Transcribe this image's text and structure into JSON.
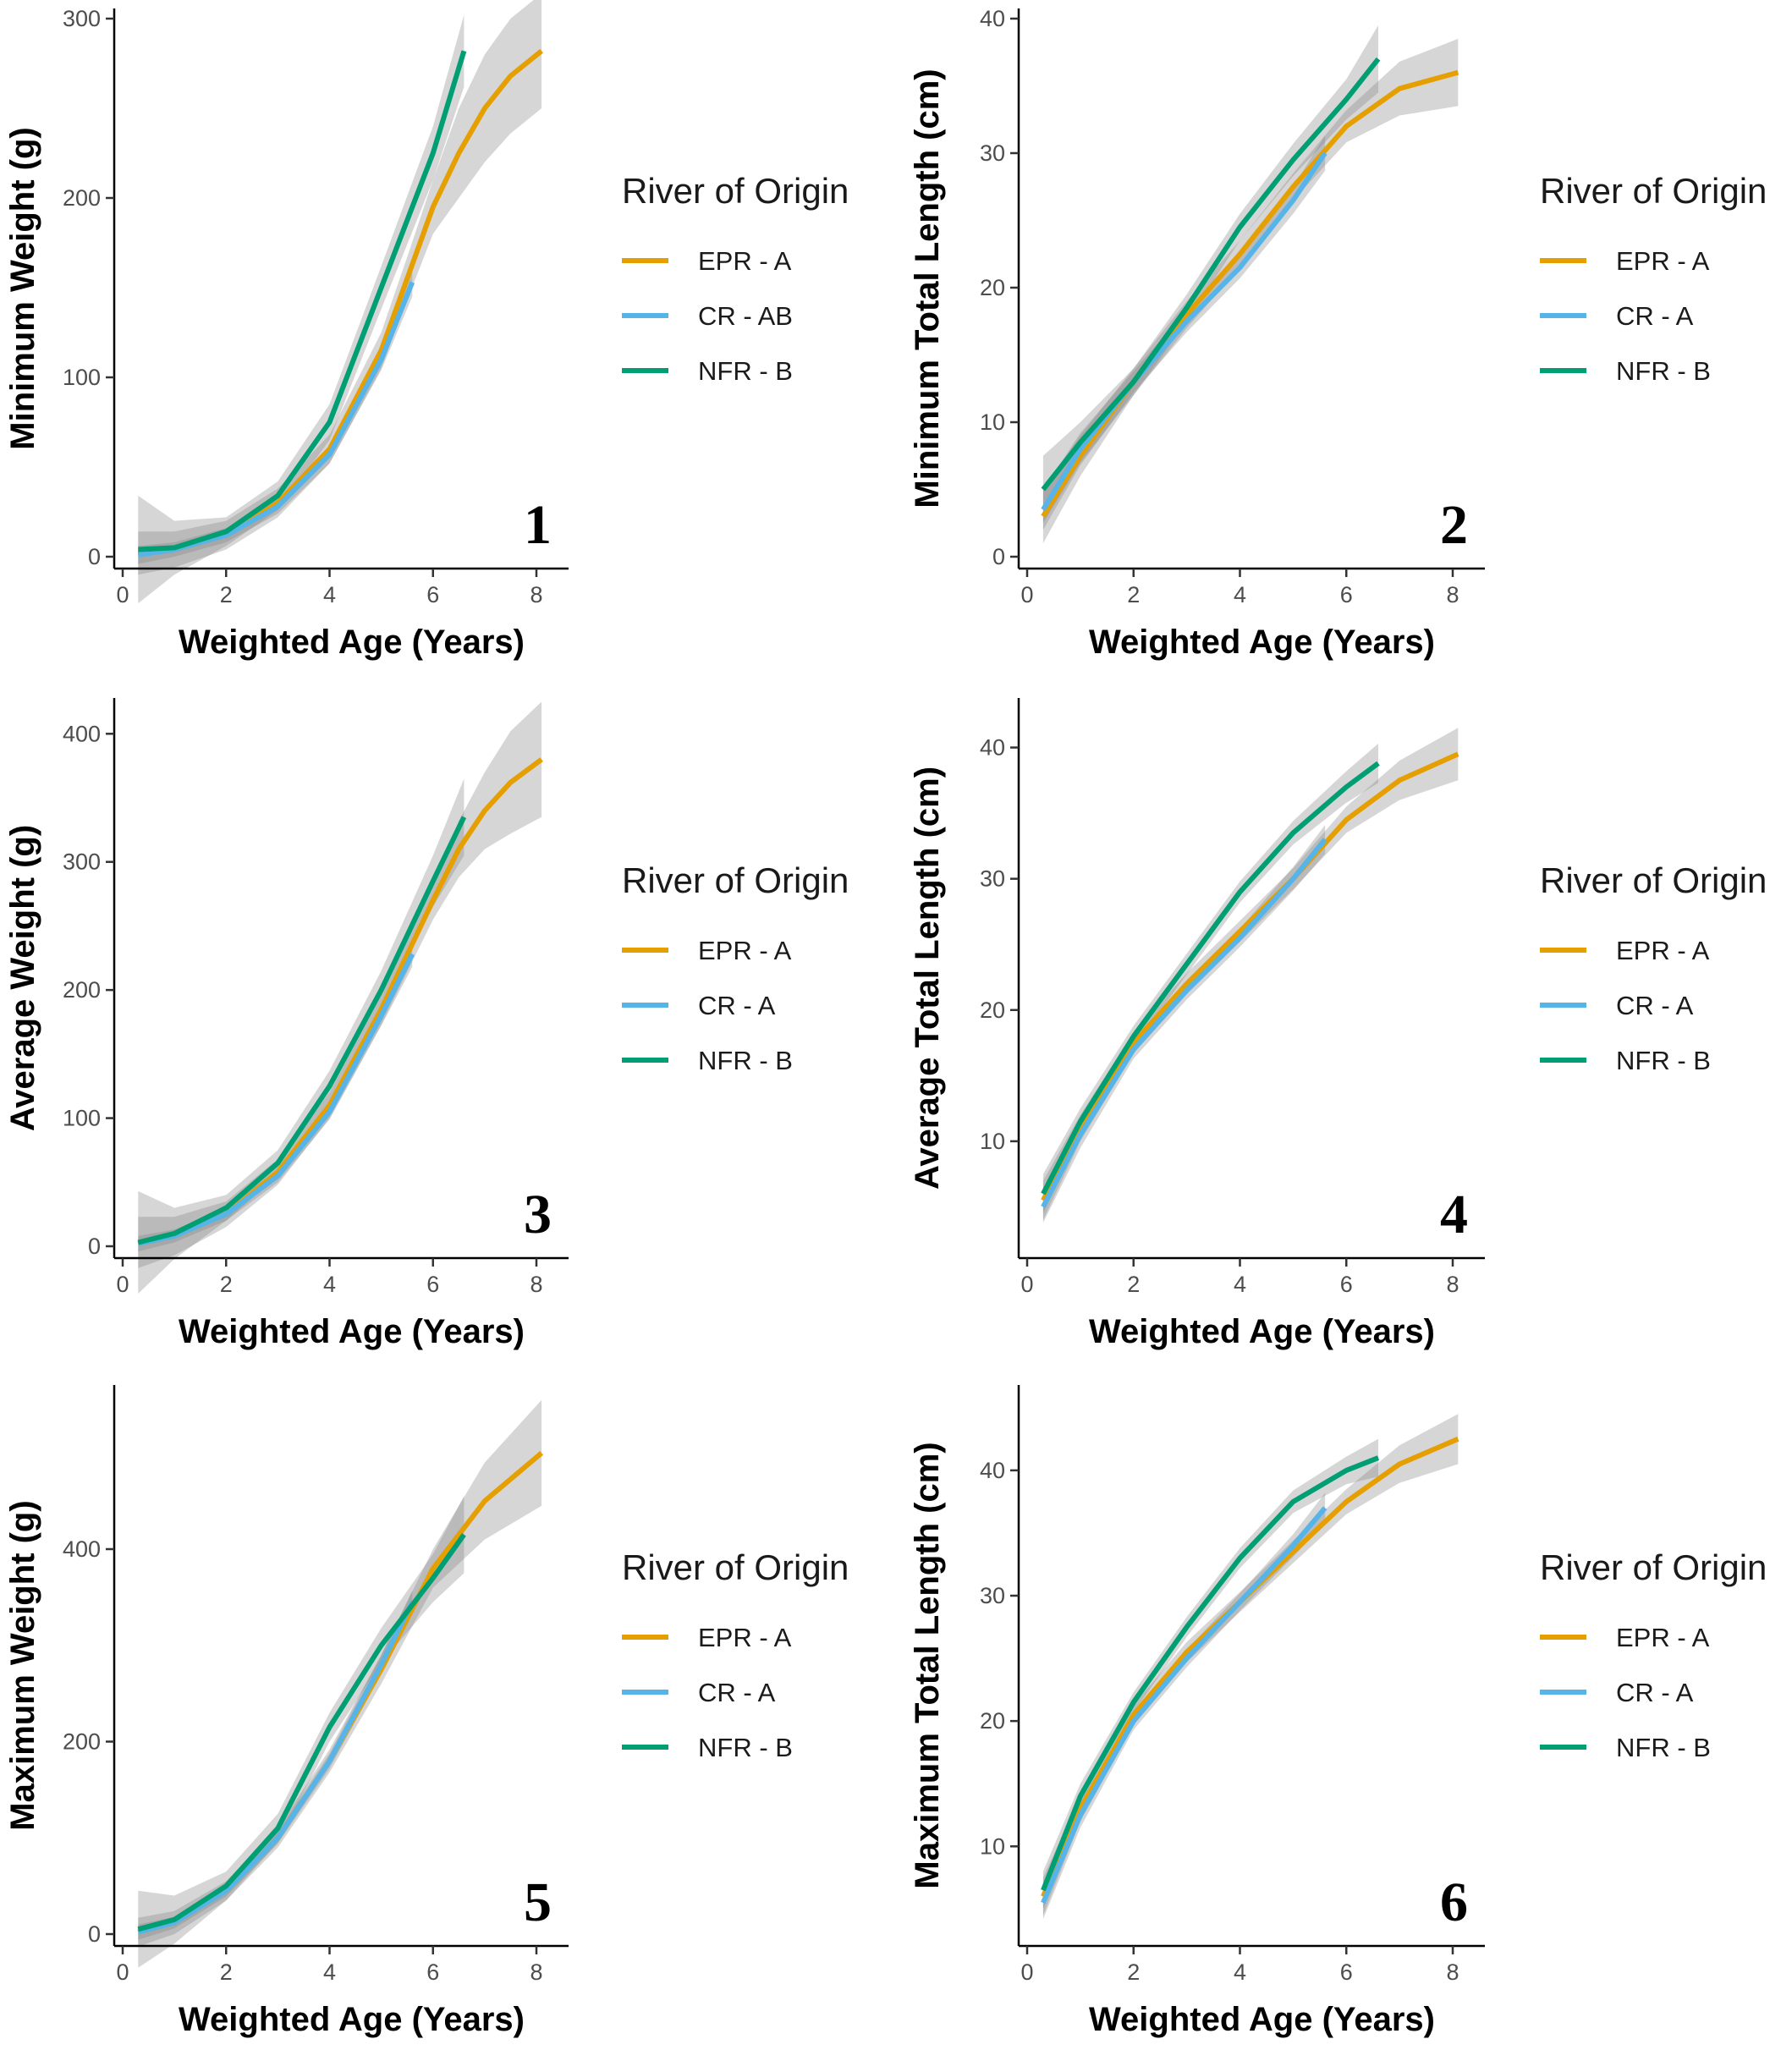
{
  "colors": {
    "EPR": "#E69F00",
    "CR": "#56B4E9",
    "NFR": "#009E73",
    "band": "#808080"
  },
  "chart_data": [
    {
      "type": "line",
      "panel_label": "1",
      "xlabel": "Weighted Age (Years)",
      "ylabel": "Minimum Weight (g)",
      "xlim": [
        0,
        8
      ],
      "ylim": [
        0,
        300
      ],
      "xticks": [
        0,
        2,
        4,
        6,
        8
      ],
      "yticks": [
        0,
        100,
        200,
        300
      ],
      "legend_title": "River of Origin",
      "series": [
        {
          "name": "EPR - A",
          "color_key": "EPR",
          "x": [
            0.3,
            1,
            2,
            3,
            4,
            5,
            5.5,
            6,
            6.5,
            7,
            7.5,
            8.1
          ],
          "y": [
            2,
            4,
            12,
            30,
            60,
            115,
            155,
            195,
            225,
            250,
            268,
            282
          ],
          "band": [
            12,
            10,
            8,
            8,
            8,
            10,
            12,
            15,
            25,
            30,
            32,
            32
          ]
        },
        {
          "name": "CR - AB",
          "color_key": "CR",
          "x": [
            0.3,
            1,
            2,
            3,
            4,
            5,
            5.6
          ],
          "y": [
            1,
            4,
            12,
            28,
            57,
            110,
            153
          ],
          "band": [
            5,
            4,
            4,
            4,
            5,
            6,
            8
          ]
        },
        {
          "name": "NFR - B",
          "color_key": "NFR",
          "x": [
            0.3,
            1,
            2,
            3,
            4,
            5,
            6,
            6.6
          ],
          "y": [
            4,
            5,
            14,
            34,
            75,
            150,
            225,
            282
          ],
          "band": [
            30,
            15,
            8,
            8,
            10,
            12,
            15,
            20
          ]
        }
      ]
    },
    {
      "type": "line",
      "panel_label": "2",
      "xlabel": "Weighted Age (Years)",
      "ylabel": "Minimum Total Length (cm)",
      "xlim": [
        0,
        8
      ],
      "ylim": [
        0,
        40
      ],
      "xticks": [
        0,
        2,
        4,
        6,
        8
      ],
      "yticks": [
        0,
        10,
        20,
        30,
        40
      ],
      "legend_title": "River of Origin",
      "series": [
        {
          "name": "EPR - A",
          "color_key": "EPR",
          "x": [
            0.3,
            1,
            2,
            3,
            4,
            5,
            6,
            7,
            8.1
          ],
          "y": [
            3,
            7.5,
            13,
            18,
            22.5,
            27.5,
            32,
            34.8,
            36
          ],
          "band": [
            2,
            1.5,
            1,
            1,
            1,
            1,
            1.2,
            2,
            2.5
          ]
        },
        {
          "name": "CR - A",
          "color_key": "CR",
          "x": [
            0.3,
            1,
            2,
            3,
            4,
            5,
            5.6
          ],
          "y": [
            3.5,
            8,
            13,
            17.5,
            21.5,
            26.5,
            30
          ],
          "band": [
            1.5,
            1.2,
            0.8,
            0.8,
            0.8,
            1,
            1.3
          ]
        },
        {
          "name": "NFR - B",
          "color_key": "NFR",
          "x": [
            0.3,
            1,
            2,
            3,
            4,
            5,
            6,
            6.6
          ],
          "y": [
            5,
            8.5,
            13,
            18.5,
            24.5,
            29.5,
            34,
            37
          ],
          "band": [
            2.5,
            1.5,
            1,
            1,
            1,
            1.2,
            1.5,
            2.5
          ]
        }
      ]
    },
    {
      "type": "line",
      "panel_label": "3",
      "xlabel": "Weighted Age (Years)",
      "ylabel": "Average Weight (g)",
      "xlim": [
        0,
        8
      ],
      "ylim": [
        0,
        420
      ],
      "xticks": [
        0,
        2,
        4,
        6,
        8
      ],
      "yticks": [
        0,
        100,
        200,
        300,
        400
      ],
      "legend_title": "River of Origin",
      "series": [
        {
          "name": "EPR - A",
          "color_key": "EPR",
          "x": [
            0.3,
            1,
            2,
            3,
            4,
            5,
            6,
            6.5,
            7,
            7.5,
            8.1
          ],
          "y": [
            3,
            8,
            25,
            58,
            110,
            185,
            270,
            310,
            340,
            362,
            380
          ],
          "band": [
            20,
            15,
            10,
            10,
            10,
            12,
            15,
            22,
            30,
            40,
            45
          ]
        },
        {
          "name": "CR - A",
          "color_key": "CR",
          "x": [
            0.3,
            1,
            2,
            3,
            4,
            5,
            5.6
          ],
          "y": [
            2,
            8,
            25,
            55,
            105,
            180,
            228
          ],
          "band": [
            6,
            5,
            5,
            5,
            6,
            8,
            10
          ]
        },
        {
          "name": "NFR - B",
          "color_key": "NFR",
          "x": [
            0.3,
            1,
            2,
            3,
            4,
            5,
            6,
            6.6
          ],
          "y": [
            3,
            10,
            30,
            65,
            125,
            200,
            285,
            335
          ],
          "band": [
            40,
            20,
            10,
            10,
            12,
            15,
            20,
            30
          ]
        }
      ]
    },
    {
      "type": "line",
      "panel_label": "4",
      "xlabel": "Weighted Age (Years)",
      "ylabel": "Average Total Length (cm)",
      "xlim": [
        0,
        8
      ],
      "ylim": [
        2,
        43
      ],
      "xticks": [
        0,
        2,
        4,
        6,
        8
      ],
      "yticks": [
        10,
        20,
        30,
        40
      ],
      "legend_title": "River of Origin",
      "series": [
        {
          "name": "EPR - A",
          "color_key": "EPR",
          "x": [
            0.3,
            1,
            2,
            3,
            4,
            5,
            6,
            7,
            8.1
          ],
          "y": [
            5.5,
            11,
            17.5,
            22,
            26,
            30,
            34.5,
            37.5,
            39.5
          ],
          "band": [
            1.5,
            1,
            0.8,
            0.8,
            0.8,
            0.8,
            1,
            1.5,
            2
          ]
        },
        {
          "name": "CR - A",
          "color_key": "CR",
          "x": [
            0.3,
            1,
            2,
            3,
            4,
            5,
            5.6
          ],
          "y": [
            5,
            10.5,
            17,
            21.5,
            25.5,
            30,
            33
          ],
          "band": [
            1.2,
            1,
            0.7,
            0.7,
            0.7,
            0.9,
            1.1
          ]
        },
        {
          "name": "NFR - B",
          "color_key": "NFR",
          "x": [
            0.3,
            1,
            2,
            3,
            4,
            5,
            6,
            6.6
          ],
          "y": [
            6,
            11.5,
            18,
            23.5,
            29,
            33.5,
            37,
            38.8
          ],
          "band": [
            1.5,
            1,
            0.8,
            0.8,
            0.8,
            0.9,
            1.2,
            1.5
          ]
        }
      ]
    },
    {
      "type": "line",
      "panel_label": "5",
      "xlabel": "Weighted Age (Years)",
      "ylabel": "Maximum Weight (g)",
      "xlim": [
        0,
        8
      ],
      "ylim": [
        0,
        560
      ],
      "xticks": [
        0,
        2,
        4,
        6,
        8
      ],
      "yticks": [
        0,
        200,
        400
      ],
      "legend_title": "River of Origin",
      "series": [
        {
          "name": "EPR - A",
          "color_key": "EPR",
          "x": [
            0.3,
            1,
            2,
            3,
            4,
            5,
            6,
            7,
            8.1
          ],
          "y": [
            2,
            12,
            45,
            100,
            180,
            275,
            380,
            450,
            500
          ],
          "band": [
            15,
            12,
            10,
            10,
            12,
            15,
            20,
            40,
            55
          ]
        },
        {
          "name": "CR - A",
          "color_key": "CR",
          "x": [
            0.3,
            1,
            2,
            3,
            4,
            5,
            5.6
          ],
          "y": [
            2,
            12,
            45,
            100,
            180,
            280,
            345
          ],
          "band": [
            8,
            6,
            6,
            6,
            8,
            10,
            12
          ]
        },
        {
          "name": "NFR - B",
          "color_key": "NFR",
          "x": [
            0.3,
            1,
            2,
            3,
            4,
            5,
            6,
            6.6
          ],
          "y": [
            5,
            15,
            50,
            110,
            215,
            300,
            370,
            415
          ],
          "band": [
            40,
            25,
            15,
            15,
            15,
            18,
            25,
            40
          ]
        }
      ]
    },
    {
      "type": "line",
      "panel_label": "6",
      "xlabel": "Weighted Age (Years)",
      "ylabel": "Maximum Total Length (cm)",
      "xlim": [
        0,
        8
      ],
      "ylim": [
        3,
        46
      ],
      "xticks": [
        0,
        2,
        4,
        6,
        8
      ],
      "yticks": [
        10,
        20,
        30,
        40
      ],
      "legend_title": "River of Origin",
      "series": [
        {
          "name": "EPR - A",
          "color_key": "EPR",
          "x": [
            0.3,
            1,
            2,
            3,
            4,
            5,
            6,
            7,
            8.1
          ],
          "y": [
            6,
            13,
            20.5,
            25.5,
            29.5,
            33.5,
            37.5,
            40.5,
            42.5
          ],
          "band": [
            1.5,
            1,
            0.8,
            0.8,
            0.8,
            0.9,
            1,
            1.5,
            2
          ]
        },
        {
          "name": "CR - A",
          "color_key": "CR",
          "x": [
            0.3,
            1,
            2,
            3,
            4,
            5,
            5.6
          ],
          "y": [
            5.5,
            12.5,
            20,
            25,
            29.5,
            34,
            37
          ],
          "band": [
            1.3,
            1,
            0.7,
            0.7,
            0.7,
            0.9,
            1.2
          ]
        },
        {
          "name": "NFR - B",
          "color_key": "NFR",
          "x": [
            0.3,
            1,
            2,
            3,
            4,
            5,
            6,
            6.6
          ],
          "y": [
            6.5,
            14,
            21.5,
            27.5,
            33,
            37.5,
            40,
            41
          ],
          "band": [
            1.5,
            1,
            0.8,
            0.8,
            0.8,
            0.9,
            1.1,
            1.5
          ]
        }
      ]
    }
  ]
}
